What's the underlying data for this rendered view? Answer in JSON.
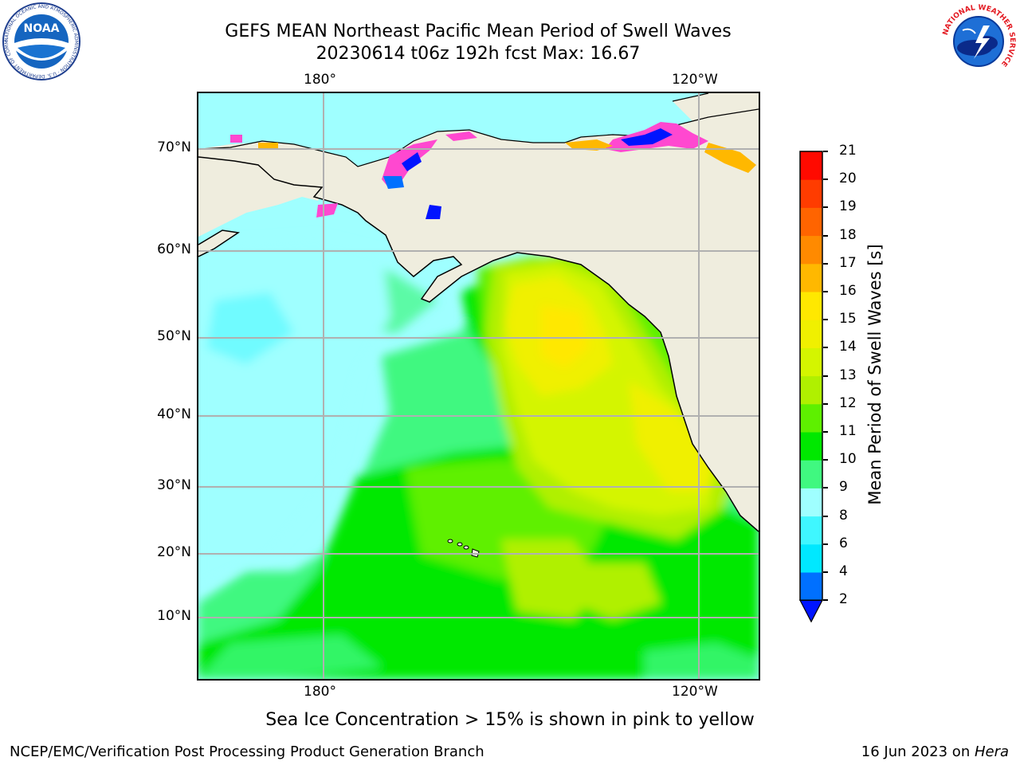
{
  "header": {
    "title_line1": "GEFS MEAN Northeast Pacific Mean Period of Swell Waves",
    "title_line2": "20230614 t06z 192h fcst   Max: 16.67"
  },
  "map": {
    "top_lon_labels": [
      "180°",
      "120°W"
    ],
    "bottom_lon_labels": [
      "180°",
      "120°W"
    ],
    "lat_labels": [
      "70°N",
      "60°N",
      "50°N",
      "40°N",
      "30°N",
      "20°N",
      "10°N"
    ],
    "land_color": "#efedde",
    "grid_color": "#b0b0b0"
  },
  "colorbar": {
    "label": "Mean Period of Swell Waves [s]",
    "ticks": [
      "2",
      "4",
      "6",
      "8",
      "9",
      "10",
      "11",
      "12",
      "13",
      "14",
      "15",
      "16",
      "17",
      "18",
      "19",
      "20",
      "21"
    ],
    "colors": [
      "#0070ff",
      "#00e8ff",
      "#3ff7ff",
      "#9fffff",
      "#40f880",
      "#00e800",
      "#5ef000",
      "#b0f000",
      "#d4f500",
      "#f0f000",
      "#ffe800",
      "#ffb800",
      "#ff8a00",
      "#ff6400",
      "#ff3c00",
      "#ff0a00"
    ],
    "under_color": "#0014ff"
  },
  "notes": {
    "ice_note": "Sea Ice Concentration > 15% is shown in pink to yellow"
  },
  "footer": {
    "left": "NCEP/EMC/Verification Post Processing Product Generation Branch",
    "right_prefix": "16 Jun 2023 on ",
    "right_host": "Hera"
  },
  "logos": {
    "noaa_text": "NOAA",
    "noaa_ring_text": "NATIONAL OCEANIC AND ATMOSPHERIC ADMINISTRATION · U.S. DEPARTMENT OF COMMERCE",
    "nws_ring_text": "NATIONAL WEATHER SERVICE"
  }
}
